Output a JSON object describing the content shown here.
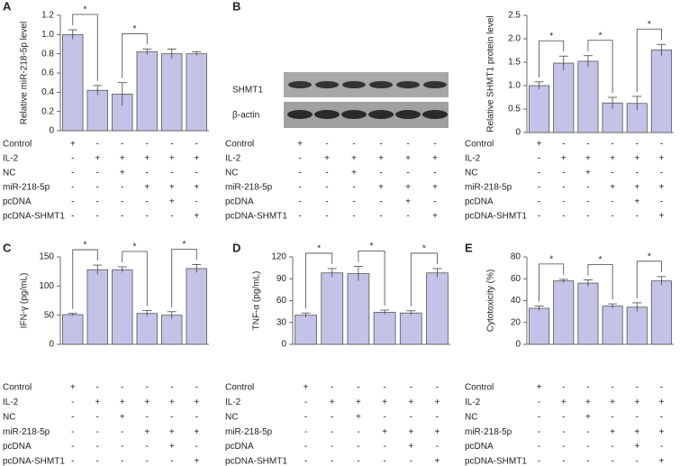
{
  "chart_data": [
    {
      "type": "bar",
      "panel": "A",
      "ylabel": "Relative miR-218-5p level",
      "categories": [
        null,
        null,
        null,
        null,
        null,
        null
      ],
      "values": [
        1.0,
        0.42,
        0.38,
        0.82,
        0.8,
        0.8
      ],
      "errors": [
        0.05,
        0.05,
        0.12,
        0.03,
        0.05,
        0.02
      ],
      "color": "#c3c3e8",
      "ylim": [
        0,
        1.2
      ],
      "yticks": [
        0,
        0.2,
        0.4,
        0.6,
        0.8,
        {
          "value": 1,
          "label": "1.0"
        },
        1.2
      ],
      "annotations": [
        {
          "text": "*",
          "from": 0,
          "to": 1
        },
        {
          "text": "*",
          "from": 2,
          "to": 3
        }
      ],
      "conditions": [
        {
          "name": "Control",
          "marks": [
            "+",
            "-",
            "-",
            "-",
            "-",
            "-"
          ]
        },
        {
          "name": "IL-2",
          "marks": [
            "-",
            "+",
            "+",
            "+",
            "+",
            "+"
          ]
        },
        {
          "name": "NC",
          "marks": [
            "-",
            "-",
            "+",
            "-",
            "-",
            "-"
          ]
        },
        {
          "name": "miR-218-5p",
          "marks": [
            "-",
            "-",
            "-",
            "+",
            "+",
            "+"
          ]
        },
        {
          "name": "pcDNA",
          "marks": [
            "-",
            "-",
            "-",
            "-",
            "+",
            "-"
          ]
        },
        {
          "name": "pcDNA-SHMT1",
          "marks": [
            "-",
            "-",
            "-",
            "-",
            "-",
            "+"
          ]
        }
      ]
    },
    {
      "type": "bar",
      "ylabel": "Relative SHMT1 protein level",
      "categories": [
        null,
        null,
        null,
        null,
        null,
        null
      ],
      "values": [
        1.0,
        1.48,
        1.52,
        0.63,
        0.62,
        1.76
      ],
      "errors": [
        0.08,
        0.15,
        0.12,
        0.12,
        0.15,
        0.12
      ],
      "color": "#c3c3e8",
      "ylim": [
        0,
        2.5
      ],
      "yticks": [
        0,
        0.5,
        {
          "value": 1,
          "label": "1.0"
        },
        1.5,
        {
          "value": 2,
          "label": "2.0"
        },
        2.5
      ],
      "annotations": [
        {
          "text": "*",
          "from": 0,
          "to": 1
        },
        {
          "text": "*",
          "from": 2,
          "to": 3
        },
        {
          "text": "*",
          "from": 4,
          "to": 5
        }
      ],
      "conditions": [
        {
          "name": "Control",
          "marks": [
            "+",
            "-",
            "-",
            "-",
            "-",
            "-"
          ]
        },
        {
          "name": "IL-2",
          "marks": [
            "-",
            "+",
            "+",
            "+",
            "+",
            "+"
          ]
        },
        {
          "name": "NC",
          "marks": [
            "-",
            "-",
            "+",
            "-",
            "-",
            "-"
          ]
        },
        {
          "name": "miR-218-5p",
          "marks": [
            "-",
            "-",
            "-",
            "+",
            "+",
            "+"
          ]
        },
        {
          "name": "pcDNA",
          "marks": [
            "-",
            "-",
            "-",
            "-",
            "+",
            "-"
          ]
        },
        {
          "name": "pcDNA-SHMT1",
          "marks": [
            "-",
            "-",
            "-",
            "-",
            "-",
            "+"
          ]
        }
      ]
    },
    {
      "type": "bar",
      "panel": "C",
      "ylabel": "IFN-γ (pg/mL)",
      "categories": [
        null,
        null,
        null,
        null,
        null,
        null
      ],
      "values": [
        51,
        128,
        128,
        53,
        50,
        130
      ],
      "errors": [
        2,
        8,
        5,
        5,
        6,
        7
      ],
      "color": "#c3c3e8",
      "ylim": [
        0,
        150
      ],
      "yticks": [
        0,
        50,
        100,
        150
      ],
      "annotations": [
        {
          "text": "*",
          "from": 0,
          "to": 1
        },
        {
          "text": "*",
          "from": 2,
          "to": 3
        },
        {
          "text": "*",
          "from": 4,
          "to": 5
        }
      ],
      "conditions": [
        {
          "name": "Control",
          "marks": [
            "+",
            "-",
            "-",
            "-",
            "-",
            "-"
          ]
        },
        {
          "name": "IL-2",
          "marks": [
            "-",
            "+",
            "+",
            "+",
            "+",
            "+"
          ]
        },
        {
          "name": "NC",
          "marks": [
            "-",
            "-",
            "+",
            "-",
            "-",
            "-"
          ]
        },
        {
          "name": "miR-218-5p",
          "marks": [
            "-",
            "-",
            "-",
            "+",
            "+",
            "+"
          ]
        },
        {
          "name": "pcDNA",
          "marks": [
            "-",
            "-",
            "-",
            "-",
            "+",
            "-"
          ]
        },
        {
          "name": "pcDNA-SHMT1",
          "marks": [
            "-",
            "-",
            "-",
            "-",
            "-",
            "+"
          ]
        }
      ]
    },
    {
      "type": "bar",
      "panel": "D",
      "ylabel": "TNF-α (pg/mL)",
      "categories": [
        null,
        null,
        null,
        null,
        null,
        null
      ],
      "values": [
        40,
        98,
        97,
        44,
        43,
        98
      ],
      "errors": [
        3,
        6,
        10,
        3,
        3,
        6
      ],
      "color": "#c3c3e8",
      "ylim": [
        0,
        120
      ],
      "yticks": [
        0,
        30,
        60,
        90,
        120
      ],
      "annotations": [
        {
          "text": "*",
          "from": 0,
          "to": 1
        },
        {
          "text": "*",
          "from": 2,
          "to": 3
        },
        {
          "text": "*",
          "from": 4,
          "to": 5
        }
      ],
      "conditions": [
        {
          "name": "Control",
          "marks": [
            "+",
            "-",
            "-",
            "-",
            "-",
            "-"
          ]
        },
        {
          "name": "IL-2",
          "marks": [
            "-",
            "+",
            "+",
            "+",
            "+",
            "+"
          ]
        },
        {
          "name": "NC",
          "marks": [
            "-",
            "-",
            "+",
            "-",
            "-",
            "-"
          ]
        },
        {
          "name": "miR-218-5p",
          "marks": [
            "-",
            "-",
            "-",
            "+",
            "+",
            "+"
          ]
        },
        {
          "name": "pcDNA",
          "marks": [
            "-",
            "-",
            "-",
            "-",
            "+",
            "-"
          ]
        },
        {
          "name": "pcDNA-SHMT1",
          "marks": [
            "-",
            "-",
            "-",
            "-",
            "-",
            "+"
          ]
        }
      ]
    },
    {
      "type": "bar",
      "panel": "E",
      "ylabel": "Cytotoxicity (%)",
      "categories": [
        null,
        null,
        null,
        null,
        null,
        null
      ],
      "values": [
        33,
        58,
        56,
        35,
        34,
        58
      ],
      "errors": [
        2,
        1.5,
        3,
        2,
        4,
        4
      ],
      "color": "#c3c3e8",
      "ylim": [
        0,
        80
      ],
      "yticks": [
        0,
        20,
        40,
        60,
        80
      ],
      "annotations": [
        {
          "text": "*",
          "from": 0,
          "to": 1
        },
        {
          "text": "*",
          "from": 2,
          "to": 3
        },
        {
          "text": "*",
          "from": 4,
          "to": 5
        }
      ],
      "conditions": [
        {
          "name": "Control",
          "marks": [
            "+",
            "-",
            "-",
            "-",
            "-",
            "-"
          ]
        },
        {
          "name": "IL-2",
          "marks": [
            "-",
            "+",
            "+",
            "+",
            "+",
            "+"
          ]
        },
        {
          "name": "NC",
          "marks": [
            "-",
            "-",
            "+",
            "-",
            "-",
            "-"
          ]
        },
        {
          "name": "miR-218-5p",
          "marks": [
            "-",
            "-",
            "-",
            "+",
            "+",
            "+"
          ]
        },
        {
          "name": "pcDNA",
          "marks": [
            "-",
            "-",
            "-",
            "-",
            "+",
            "-"
          ]
        },
        {
          "name": "pcDNA-SHMT1",
          "marks": [
            "-",
            "-",
            "-",
            "-",
            "-",
            "+"
          ]
        }
      ]
    }
  ],
  "western_blot": {
    "panel": "B",
    "bands": [
      "SHMT1",
      "β-actin"
    ],
    "conditions": [
      {
        "name": "Control",
        "marks": [
          "+",
          "-",
          "-",
          "-",
          "-",
          "-"
        ]
      },
      {
        "name": "IL-2",
        "marks": [
          "-",
          "+",
          "+",
          "+",
          "+",
          "+"
        ]
      },
      {
        "name": "NC",
        "marks": [
          "-",
          "-",
          "+",
          "-",
          "-",
          "-"
        ]
      },
      {
        "name": "miR-218-5p",
        "marks": [
          "-",
          "-",
          "-",
          "+",
          "+",
          "+"
        ]
      },
      {
        "name": "pcDNA",
        "marks": [
          "-",
          "-",
          "-",
          "-",
          "+",
          "-"
        ]
      },
      {
        "name": "pcDNA-SHMT1",
        "marks": [
          "-",
          "-",
          "-",
          "-",
          "-",
          "+"
        ]
      }
    ]
  }
}
